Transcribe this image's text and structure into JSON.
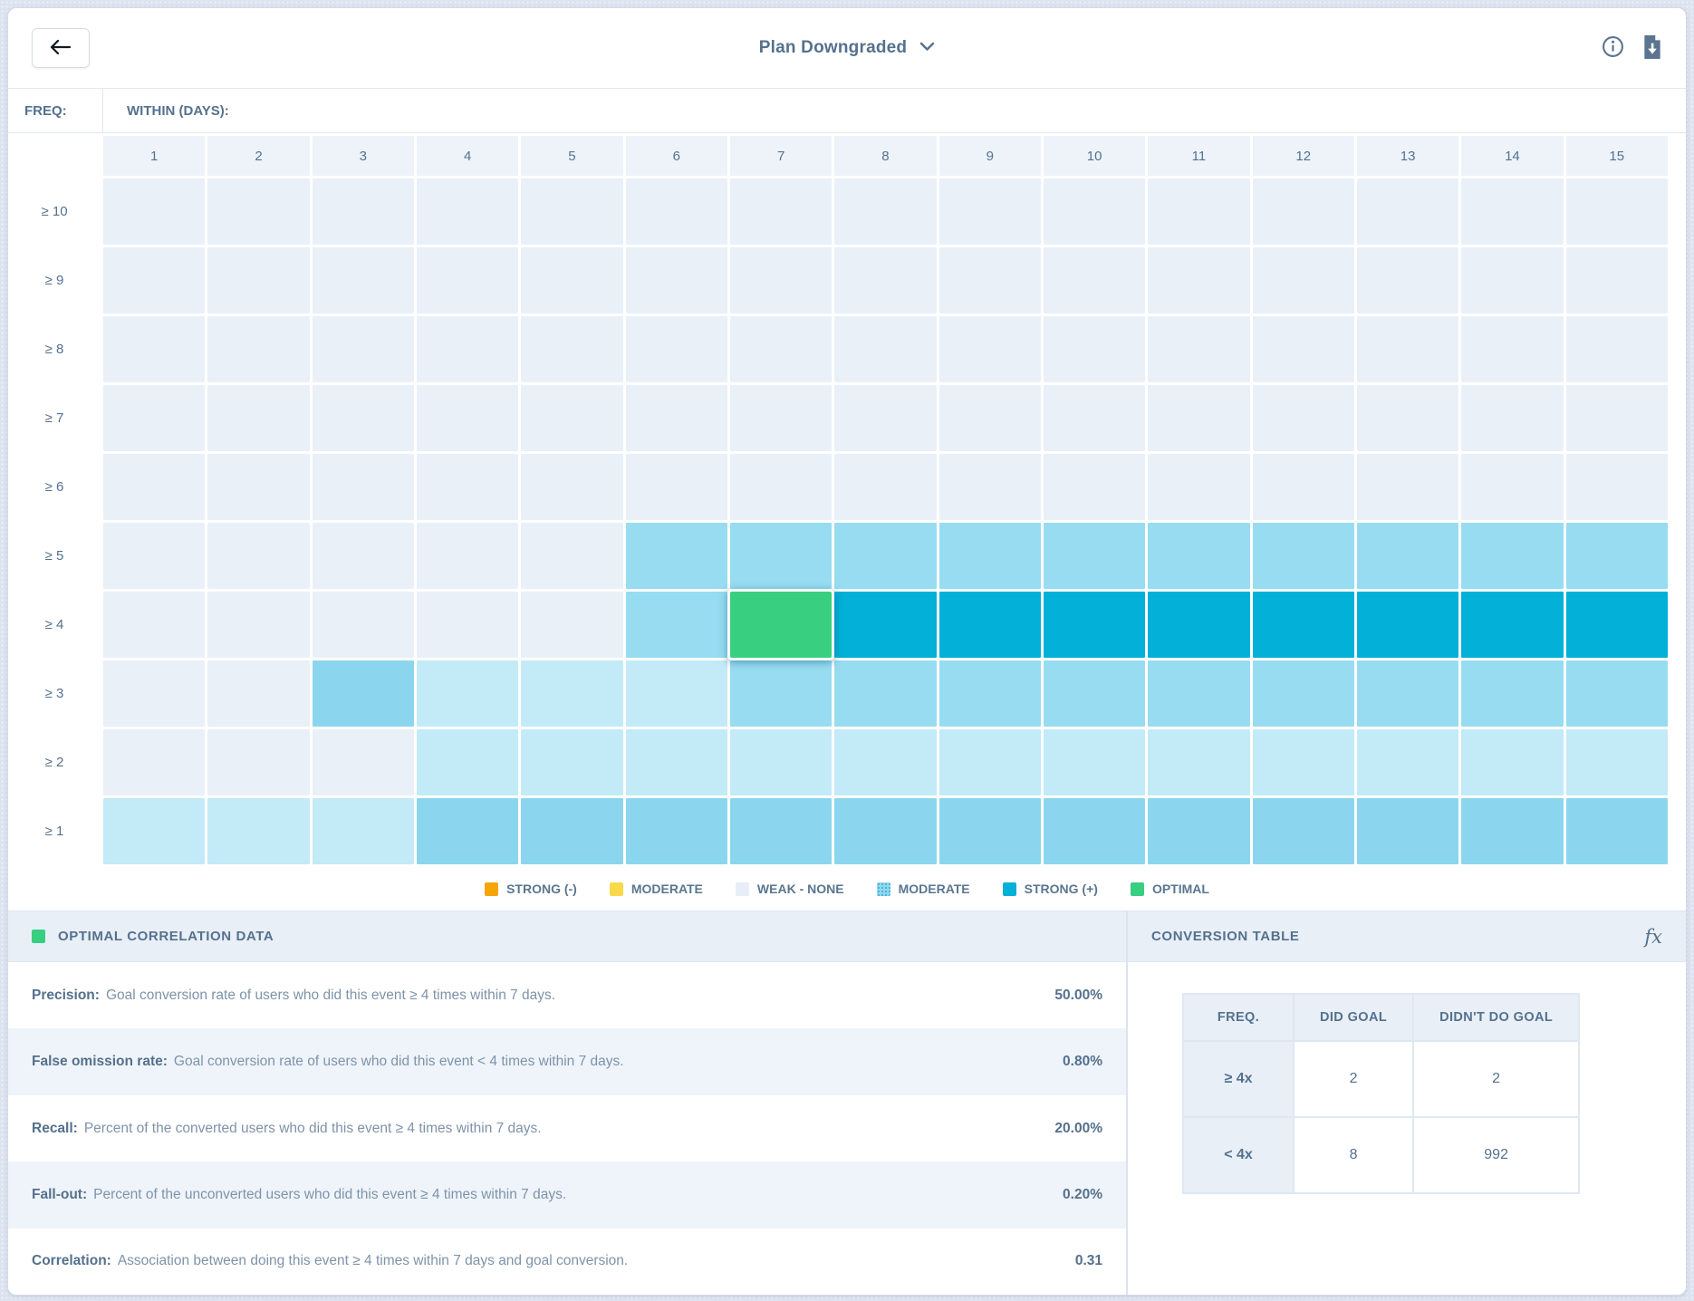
{
  "topbar": {
    "title": "Plan Downgraded"
  },
  "heatmap": {
    "freq_label": "FREQ:",
    "within_label": "WITHIN (DAYS):",
    "columns": [
      "1",
      "2",
      "3",
      "4",
      "5",
      "6",
      "7",
      "8",
      "9",
      "10",
      "11",
      "12",
      "13",
      "14",
      "15"
    ],
    "rows": [
      {
        "label": "≥ 10",
        "cells": "wwwwwwwwwwwwwww"
      },
      {
        "label": "≥ 9",
        "cells": "wwwwwwwwwwwwwww"
      },
      {
        "label": "≥ 8",
        "cells": "wwwwwwwwwwwwwww"
      },
      {
        "label": "≥ 7",
        "cells": "wwwwwwwwwwwwwww"
      },
      {
        "label": "≥ 6",
        "cells": "wwwwwwwwwwwwwww"
      },
      {
        "label": "≥ 5",
        "cells": "wwwwwmmmmmmmmmm"
      },
      {
        "label": "≥ 4",
        "cells": "wwwwwmossssssss"
      },
      {
        "label": "≥ 3",
        "cells": "wwdpppmmmmmmmmm"
      },
      {
        "label": "≥ 2",
        "cells": "wwwpppppppppppp"
      },
      {
        "label": "≥ 1",
        "cells": "pppdddddddddddd"
      }
    ],
    "colors": {
      "w": "#e9f0f8",
      "p": "#c3eaf7",
      "m": "#97dcf1",
      "d": "#8bd6ee",
      "s": "#03b0d7",
      "o": "#38cf81"
    }
  },
  "legend": [
    {
      "label": "STRONG (-)",
      "color": "#f5a506",
      "textured": false
    },
    {
      "label": "MODERATE",
      "color": "#f8d94a",
      "textured": false
    },
    {
      "label": "WEAK - NONE",
      "color": "#e7eef7",
      "textured": false
    },
    {
      "label": "MODERATE",
      "color": "#8ed8f0",
      "textured": true
    },
    {
      "label": "STRONG (+)",
      "color": "#03b0d7",
      "textured": false
    },
    {
      "label": "OPTIMAL",
      "color": "#38cf81",
      "textured": false
    }
  ],
  "optimal_panel": {
    "title": "OPTIMAL CORRELATION DATA",
    "swatch_color": "#38cf81",
    "stats": [
      {
        "label": "Precision:",
        "description": "Goal conversion rate of users who did this event ≥ 4 times within 7 days.",
        "value": "50.00%"
      },
      {
        "label": "False omission rate:",
        "description": "Goal conversion rate of users who did this event < 4 times within 7 days.",
        "value": "0.80%"
      },
      {
        "label": "Recall:",
        "description": "Percent of the converted users who did this event ≥ 4 times within 7 days.",
        "value": "20.00%"
      },
      {
        "label": "Fall-out:",
        "description": "Percent of the unconverted users who did this event ≥ 4 times within 7 days.",
        "value": "0.20%"
      },
      {
        "label": "Correlation:",
        "description": "Association between doing this event ≥ 4 times within 7 days and goal conversion.",
        "value": "0.31"
      }
    ]
  },
  "conversion_panel": {
    "title": "CONVERSION TABLE",
    "fx_label": "fx",
    "table": {
      "headers": [
        "FREQ.",
        "DID GOAL",
        "DIDN'T DO GOAL"
      ],
      "rows": [
        [
          "≥ 4x",
          "2",
          "2"
        ],
        [
          "< 4x",
          "8",
          "992"
        ]
      ]
    }
  },
  "chart_data": {
    "type": "heatmap",
    "title": "Correlation of event frequency vs. window (days) with goal conversion",
    "xlabel": "WITHIN (DAYS)",
    "ylabel": "FREQ",
    "x": [
      1,
      2,
      3,
      4,
      5,
      6,
      7,
      8,
      9,
      10,
      11,
      12,
      13,
      14,
      15
    ],
    "y": [
      "≥ 10",
      "≥ 9",
      "≥ 8",
      "≥ 7",
      "≥ 6",
      "≥ 5",
      "≥ 4",
      "≥ 3",
      "≥ 2",
      "≥ 1"
    ],
    "cell_codes_by_row": [
      "wwwwwwwwwwwwwww",
      "wwwwwwwwwwwwwww",
      "wwwwwwwwwwwwwww",
      "wwwwwwwwwwwwwww",
      "wwwwwwwwwwwwwww",
      "wwwwwmmmmmmmmmm",
      "wwwwwmossssssss",
      "wwdpppmmmmmmmmm",
      "wwwpppppppppppp",
      "pppdddddddddddd"
    ],
    "code_meaning": {
      "w": "weak - none",
      "p": "moderate (low)",
      "d": "moderate (mid)",
      "m": "moderate",
      "s": "strong (+)",
      "o": "optimal"
    },
    "optimal_cell": {
      "freq": "≥ 4",
      "within_days": 7
    },
    "legend_position": "bottom",
    "grid": true
  }
}
